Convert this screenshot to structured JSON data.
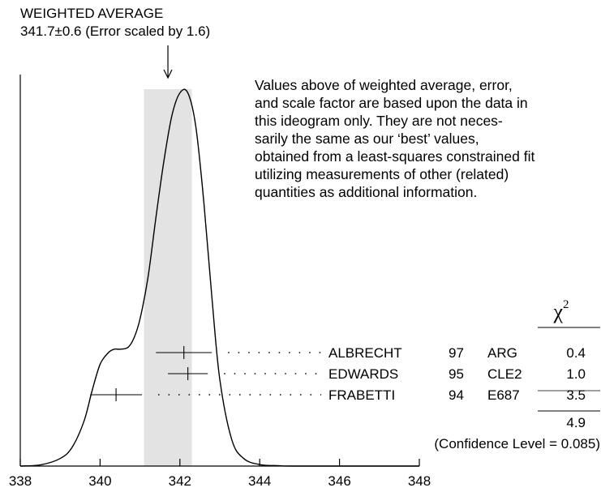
{
  "header": {
    "title": "WEIGHTED AVERAGE",
    "subtitle": "341.7±0.6 (Error scaled by 1.6)"
  },
  "note": {
    "lines": [
      "Values above of weighted average, error,",
      "and scale factor are based upon the data in",
      "this ideogram only.  They are not neces-",
      "sarily the same as our ‘best’ values,",
      "obtained from a least-squares constrained fit",
      "utilizing measurements of other (related)",
      "quantities as additional information."
    ]
  },
  "chart_data": {
    "type": "ideogram",
    "x_ticks": [
      "338",
      "340",
      "342",
      "344",
      "346",
      "348"
    ],
    "xlim": [
      338,
      348
    ],
    "weighted_average": {
      "value": 341.7,
      "error": 0.6,
      "scale_factor": 1.6
    },
    "measurements": [
      {
        "author": "ALBRECHT",
        "year": "97",
        "experiment": "ARG",
        "value": 342.1,
        "error": 0.7,
        "chi2": "0.4"
      },
      {
        "author": "EDWARDS",
        "year": "95",
        "experiment": "CLE2",
        "value": 342.2,
        "error": 0.5,
        "chi2": "1.0"
      },
      {
        "author": "FRABETTI",
        "year": "94",
        "experiment": "E687",
        "value": 340.4,
        "error": 0.65,
        "chi2": "3.5"
      }
    ],
    "chi2_header": "χ",
    "chi2_header_sup": "2",
    "chi2_total": "4.9",
    "confidence_level_text": "(Confidence Level = 0.085)",
    "curve": {
      "x": [
        338.0,
        338.5,
        339.0,
        339.3,
        339.6,
        339.8,
        340.0,
        340.2,
        340.35,
        340.5,
        340.7,
        340.85,
        341.0,
        341.2,
        341.4,
        341.6,
        341.8,
        342.0,
        342.2,
        342.4,
        342.6,
        342.8,
        343.0,
        343.3,
        343.6,
        344.0,
        344.5,
        345.0,
        348.0
      ],
      "y": [
        0.0,
        0.003,
        0.02,
        0.05,
        0.12,
        0.2,
        0.27,
        0.3,
        0.31,
        0.31,
        0.315,
        0.34,
        0.39,
        0.5,
        0.66,
        0.81,
        0.93,
        0.99,
        0.99,
        0.9,
        0.7,
        0.45,
        0.23,
        0.07,
        0.02,
        0.004,
        0.001,
        0.0,
        0.0
      ]
    }
  }
}
